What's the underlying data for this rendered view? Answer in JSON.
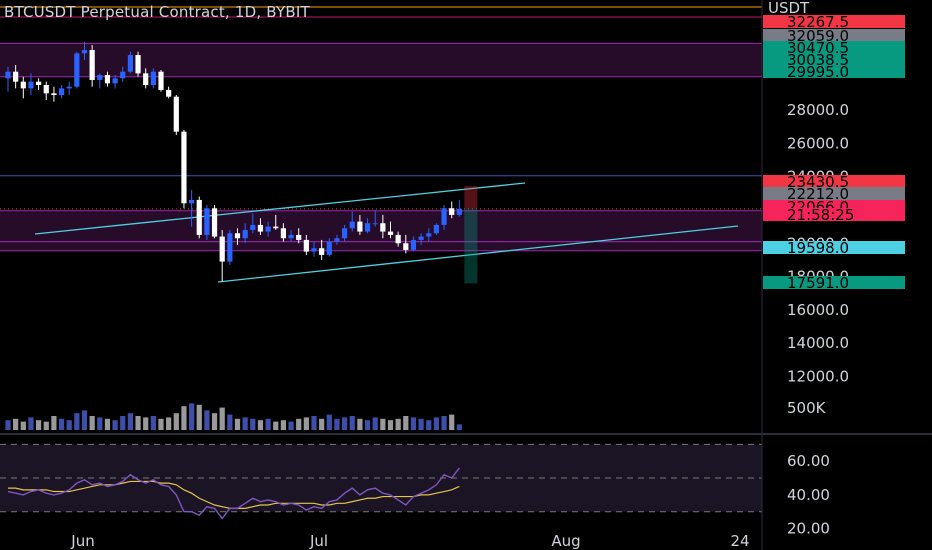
{
  "title": "BTCUSDT Perpetual Contract, 1D, BYBIT",
  "currency": "USDT",
  "price_axis": {
    "ticks": [
      "28000.0",
      "26000.0",
      "24000.0",
      "22000.0",
      "20000.0",
      "18000.0",
      "16000.0",
      "14000.0",
      "12000.0"
    ],
    "tick_values": [
      28000,
      26000,
      24000,
      22000,
      20000,
      18000,
      16000,
      14000,
      12000
    ]
  },
  "price_tags": [
    {
      "label": "32267.5",
      "value": 32267.5,
      "bg": "#f23645",
      "fg": "#000000"
    },
    {
      "label": "32059.0",
      "value": 32059.0,
      "bg": "#787b86",
      "fg": "#000000"
    },
    {
      "label": "30470.5",
      "value": 30470.5,
      "bg": "#089981",
      "fg": "#000000"
    },
    {
      "label": "30038.5",
      "value": 30038.5,
      "bg": "#089981",
      "fg": "#000000"
    },
    {
      "label": "29995.0",
      "value": 29995.0,
      "bg": "#089981",
      "fg": "#000000"
    },
    {
      "label": "23430.5",
      "value": 23430.5,
      "bg": "#f23645",
      "fg": "#000000"
    },
    {
      "label": "22212.0",
      "value": 22212.0,
      "bg": "#787b86",
      "fg": "#000000"
    },
    {
      "label": "22066.0",
      "value": 22066.0,
      "bg": "#f7245c",
      "fg": "#000000"
    },
    {
      "label": "21:58:25",
      "value": 21450.0,
      "bg": "#f7245c",
      "fg": "#000000"
    },
    {
      "label": "19598.0",
      "value": 19598.0,
      "bg": "#4dd0e1",
      "fg": "#000000"
    },
    {
      "label": "17591.0",
      "value": 17591.0,
      "bg": "#089981",
      "fg": "#000000"
    }
  ],
  "volume_axis": {
    "label": "500K"
  },
  "rsi_axis": {
    "ticks": [
      "60.00",
      "40.00",
      "20.00"
    ],
    "tick_values": [
      60,
      40,
      20
    ]
  },
  "time_axis": {
    "labels": [
      "Jun",
      "Jul",
      "Aug",
      "24"
    ]
  },
  "colors": {
    "up": "#2962ff",
    "down": "#ffffff",
    "zone_fill": "#2a0d2e",
    "zone_line": "#9c27b0",
    "trendline": "#4dd0e1",
    "rsi_line": "#7e57c2",
    "rsi_ma": "#e8c34a",
    "resistance_line": "#ff9800"
  },
  "chart_data": [
    {
      "type": "candlestick",
      "title": "BTCUSDT Perpetual Contract, 1D, BYBIT",
      "x_labels": [
        "Jun",
        "Jul",
        "Aug"
      ],
      "ylim": [
        11000,
        33500
      ],
      "series": [
        {
          "o": 29900,
          "h": 30600,
          "l": 29100,
          "c": 30300
        },
        {
          "o": 30300,
          "h": 30700,
          "l": 29300,
          "c": 29700
        },
        {
          "o": 29700,
          "h": 30000,
          "l": 28700,
          "c": 29300
        },
        {
          "o": 29300,
          "h": 30200,
          "l": 28900,
          "c": 29700
        },
        {
          "o": 29700,
          "h": 29900,
          "l": 29200,
          "c": 29500
        },
        {
          "o": 29500,
          "h": 29700,
          "l": 28600,
          "c": 29000
        },
        {
          "o": 29000,
          "h": 29400,
          "l": 28500,
          "c": 28900
        },
        {
          "o": 28900,
          "h": 29500,
          "l": 28700,
          "c": 29300
        },
        {
          "o": 29300,
          "h": 29700,
          "l": 28900,
          "c": 29400
        },
        {
          "o": 29400,
          "h": 31500,
          "l": 29300,
          "c": 31400
        },
        {
          "o": 31400,
          "h": 32100,
          "l": 31000,
          "c": 31600
        },
        {
          "o": 31600,
          "h": 31900,
          "l": 29400,
          "c": 29800
        },
        {
          "o": 29800,
          "h": 30200,
          "l": 29300,
          "c": 30100
        },
        {
          "o": 30100,
          "h": 30300,
          "l": 29400,
          "c": 29600
        },
        {
          "o": 29600,
          "h": 30100,
          "l": 29300,
          "c": 29900
        },
        {
          "o": 29900,
          "h": 30600,
          "l": 29700,
          "c": 30300
        },
        {
          "o": 30300,
          "h": 31500,
          "l": 30200,
          "c": 31300
        },
        {
          "o": 31300,
          "h": 31500,
          "l": 30000,
          "c": 30200
        },
        {
          "o": 30200,
          "h": 30500,
          "l": 29300,
          "c": 29500
        },
        {
          "o": 29500,
          "h": 30500,
          "l": 29300,
          "c": 30300
        },
        {
          "o": 30300,
          "h": 30400,
          "l": 29100,
          "c": 29200
        },
        {
          "o": 29200,
          "h": 29400,
          "l": 28700,
          "c": 28800
        },
        {
          "o": 28800,
          "h": 28900,
          "l": 26500,
          "c": 26700
        },
        {
          "o": 26700,
          "h": 26800,
          "l": 22100,
          "c": 22400
        },
        {
          "o": 22400,
          "h": 23200,
          "l": 21000,
          "c": 22600
        },
        {
          "o": 22600,
          "h": 22800,
          "l": 20300,
          "c": 20500
        },
        {
          "o": 20500,
          "h": 22300,
          "l": 20200,
          "c": 22100
        },
        {
          "o": 22100,
          "h": 22300,
          "l": 20300,
          "c": 20400
        },
        {
          "o": 20400,
          "h": 20800,
          "l": 17700,
          "c": 18900
        },
        {
          "o": 18900,
          "h": 20800,
          "l": 18700,
          "c": 20600
        },
        {
          "o": 20600,
          "h": 20900,
          "l": 19900,
          "c": 20300
        },
        {
          "o": 20300,
          "h": 21200,
          "l": 20000,
          "c": 20800
        },
        {
          "o": 20800,
          "h": 21800,
          "l": 20600,
          "c": 21100
        },
        {
          "o": 21100,
          "h": 21500,
          "l": 20500,
          "c": 20700
        },
        {
          "o": 20700,
          "h": 21300,
          "l": 20400,
          "c": 21000
        },
        {
          "o": 21000,
          "h": 21700,
          "l": 20800,
          "c": 20900
        },
        {
          "o": 20900,
          "h": 21200,
          "l": 20100,
          "c": 20300
        },
        {
          "o": 20300,
          "h": 20800,
          "l": 20100,
          "c": 20500
        },
        {
          "o": 20500,
          "h": 20900,
          "l": 20000,
          "c": 20200
        },
        {
          "o": 20200,
          "h": 20500,
          "l": 19300,
          "c": 19500
        },
        {
          "o": 19500,
          "h": 20100,
          "l": 19200,
          "c": 19700
        },
        {
          "o": 19700,
          "h": 20200,
          "l": 19000,
          "c": 19300
        },
        {
          "o": 19300,
          "h": 20300,
          "l": 19200,
          "c": 20100
        },
        {
          "o": 20100,
          "h": 20500,
          "l": 19900,
          "c": 20300
        },
        {
          "o": 20300,
          "h": 21100,
          "l": 20100,
          "c": 20900
        },
        {
          "o": 20900,
          "h": 21900,
          "l": 20700,
          "c": 21300
        },
        {
          "o": 21300,
          "h": 21700,
          "l": 20500,
          "c": 20700
        },
        {
          "o": 20700,
          "h": 21500,
          "l": 20600,
          "c": 21200
        },
        {
          "o": 21200,
          "h": 22000,
          "l": 21000,
          "c": 21200
        },
        {
          "o": 21200,
          "h": 21700,
          "l": 20300,
          "c": 20700
        },
        {
          "o": 20700,
          "h": 21300,
          "l": 20300,
          "c": 20500
        },
        {
          "o": 20500,
          "h": 20700,
          "l": 19800,
          "c": 20000
        },
        {
          "o": 20000,
          "h": 20500,
          "l": 19400,
          "c": 19600
        },
        {
          "o": 19600,
          "h": 20400,
          "l": 19500,
          "c": 20200
        },
        {
          "o": 20200,
          "h": 20600,
          "l": 19900,
          "c": 20400
        },
        {
          "o": 20400,
          "h": 20900,
          "l": 20100,
          "c": 20600
        },
        {
          "o": 20600,
          "h": 21200,
          "l": 20500,
          "c": 21100
        },
        {
          "o": 21100,
          "h": 22300,
          "l": 20800,
          "c": 22100
        },
        {
          "o": 22100,
          "h": 22500,
          "l": 21500,
          "c": 21700
        },
        {
          "o": 21700,
          "h": 22600,
          "l": 21600,
          "c": 22066
        }
      ]
    },
    {
      "type": "bar",
      "title": "Volume",
      "values": [
        0.35,
        0.4,
        0.3,
        0.45,
        0.35,
        0.3,
        0.5,
        0.4,
        0.35,
        0.6,
        0.7,
        0.5,
        0.45,
        0.4,
        0.35,
        0.5,
        0.6,
        0.5,
        0.45,
        0.5,
        0.4,
        0.45,
        0.6,
        0.85,
        0.95,
        0.9,
        0.7,
        0.6,
        0.8,
        0.55,
        0.4,
        0.45,
        0.4,
        0.35,
        0.4,
        0.3,
        0.35,
        0.3,
        0.4,
        0.45,
        0.5,
        0.4,
        0.55,
        0.4,
        0.45,
        0.5,
        0.4,
        0.35,
        0.45,
        0.4,
        0.35,
        0.4,
        0.5,
        0.45,
        0.4,
        0.35,
        0.45,
        0.5,
        0.55,
        0.2
      ],
      "ylim": [
        0,
        1
      ],
      "ylabel_tick": "500K"
    },
    {
      "type": "line",
      "title": "RSI",
      "series": [
        {
          "name": "RSI",
          "values": [
            42,
            41,
            40,
            42,
            43,
            41,
            40,
            41,
            43,
            47,
            49,
            46,
            47,
            45,
            46,
            48,
            52,
            49,
            47,
            49,
            46,
            45,
            40,
            30,
            30,
            28,
            33,
            32,
            26,
            32,
            32,
            35,
            38,
            36,
            37,
            36,
            34,
            35,
            34,
            31,
            33,
            32,
            36,
            37,
            41,
            44,
            40,
            43,
            44,
            41,
            40,
            37,
            34,
            39,
            41,
            43,
            46,
            52,
            50,
            56
          ]
        },
        {
          "name": "RSI-MA",
          "values": [
            44,
            44,
            43,
            43,
            43,
            43,
            42,
            42,
            42,
            43,
            44,
            45,
            46,
            46,
            46,
            47,
            48,
            48,
            48,
            48,
            47,
            47,
            46,
            43,
            41,
            38,
            36,
            34,
            33,
            32,
            32,
            32,
            33,
            34,
            34,
            35,
            35,
            35,
            35,
            35,
            35,
            34,
            34,
            35,
            35,
            36,
            37,
            38,
            38,
            39,
            39,
            39,
            39,
            39,
            40,
            40,
            41,
            42,
            43,
            45
          ]
        }
      ],
      "ylim": [
        15,
        72
      ],
      "guides": [
        70,
        50,
        30
      ]
    }
  ]
}
